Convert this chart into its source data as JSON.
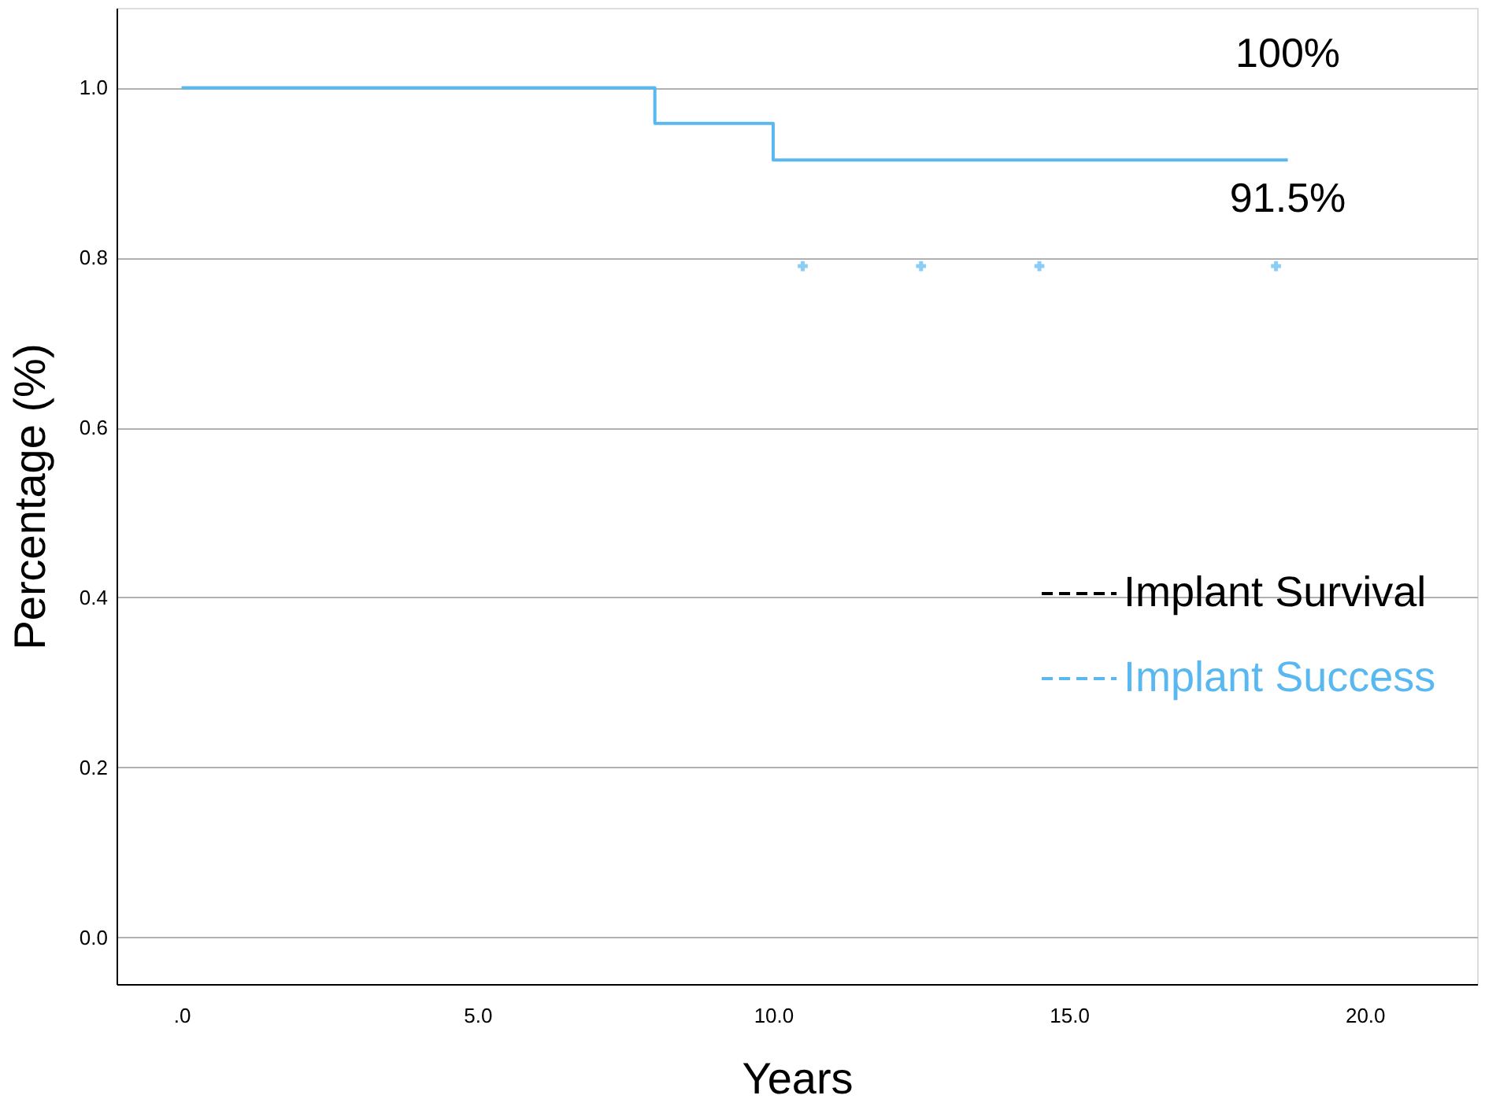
{
  "chart_data": {
    "type": "step",
    "xlabel": "Years",
    "ylabel": "Percentage (%)",
    "xlim": [
      -1.1,
      21.9
    ],
    "ylim": [
      -0.055,
      1.094
    ],
    "xticks": [
      {
        "value": 0,
        "label": ".0"
      },
      {
        "value": 5,
        "label": "5.0"
      },
      {
        "value": 10,
        "label": "10.0"
      },
      {
        "value": 15,
        "label": "15.0"
      },
      {
        "value": 20,
        "label": "20.0"
      }
    ],
    "yticks": [
      {
        "value": 0,
        "label": "0.0"
      },
      {
        "value": 0.2,
        "label": "0.2"
      },
      {
        "value": 0.4,
        "label": "0.4"
      },
      {
        "value": 0.6,
        "label": "0.6"
      },
      {
        "value": 0.8,
        "label": "0.8"
      },
      {
        "value": 1.0,
        "label": "1.0"
      }
    ],
    "grid": "y",
    "legend": "bottom right",
    "series": [
      {
        "name": "Implant Success",
        "color": "#5ab8f0",
        "line_style": "solid",
        "x": [
          0,
          8.0,
          10.0,
          18.7
        ],
        "values": [
          1.0,
          0.958,
          0.915,
          0.915
        ]
      },
      {
        "name": "Implant Survival",
        "color": "#000000",
        "type": "step"
      },
      {
        "color": "#5ab8f0",
        "type": "scatter",
        "marker": "cross",
        "x": [
          10.5,
          12.5,
          14.5,
          18.5
        ],
        "values": [
          0.79,
          0.79,
          0.79,
          0.79
        ]
      }
    ],
    "annotations": [
      "100%",
      "91.5%"
    ]
  }
}
